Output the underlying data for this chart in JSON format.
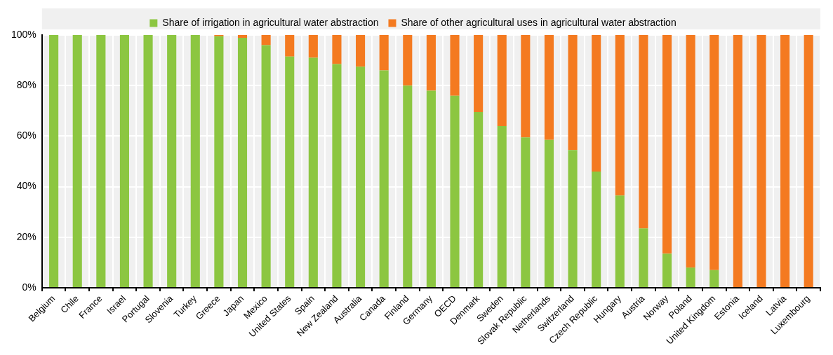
{
  "chart_data": {
    "type": "bar",
    "stacked": true,
    "categories": [
      "Belgium",
      "Chile",
      "France",
      "Israel",
      "Portugal",
      "Slovenia",
      "Turkey",
      "Greece",
      "Japan",
      "Mexico",
      "United States",
      "Spain",
      "New Zealand",
      "Australia",
      "Canada",
      "Finland",
      "Germany",
      "OECD",
      "Denmark",
      "Sweden",
      "Slovak Republic",
      "Netherlands",
      "Switzerland",
      "Czech Republic",
      "Hungary",
      "Austria",
      "Norway",
      "Poland",
      "United Kingdom",
      "Estonia",
      "Iceland",
      "Latvia",
      "Luxembourg"
    ],
    "series": [
      {
        "name": "Share of irrigation in agricultural water abstraction",
        "color": "#8cc641",
        "values": [
          100,
          100,
          100,
          100,
          100,
          100,
          100,
          99.5,
          98.9,
          96,
          91.5,
          91,
          88.5,
          87.5,
          86,
          80,
          78,
          76,
          69.5,
          64,
          59.5,
          58.5,
          54.5,
          46,
          36.5,
          23.5,
          13.5,
          8,
          7,
          0,
          0,
          0,
          0
        ]
      },
      {
        "name": "Share of other agricultural uses in agricultural water abstraction",
        "color": "#f47a20",
        "values": [
          0,
          0,
          0,
          0,
          0,
          0,
          0,
          0.5,
          1.1,
          4,
          8.5,
          9,
          11.5,
          12.5,
          14,
          20,
          22,
          24,
          30.5,
          36,
          40.5,
          41.5,
          45.5,
          54,
          63.5,
          76.5,
          86.5,
          92,
          93,
          100,
          100,
          100,
          100
        ]
      }
    ],
    "ylim": [
      0,
      100
    ],
    "yticks": [
      {
        "value": 0,
        "label": "0%"
      },
      {
        "value": 20,
        "label": "20%"
      },
      {
        "value": 40,
        "label": "40%"
      },
      {
        "value": 60,
        "label": "60%"
      },
      {
        "value": 80,
        "label": "80%"
      },
      {
        "value": 100,
        "label": "100%"
      }
    ],
    "grid": true,
    "legend": "top"
  }
}
